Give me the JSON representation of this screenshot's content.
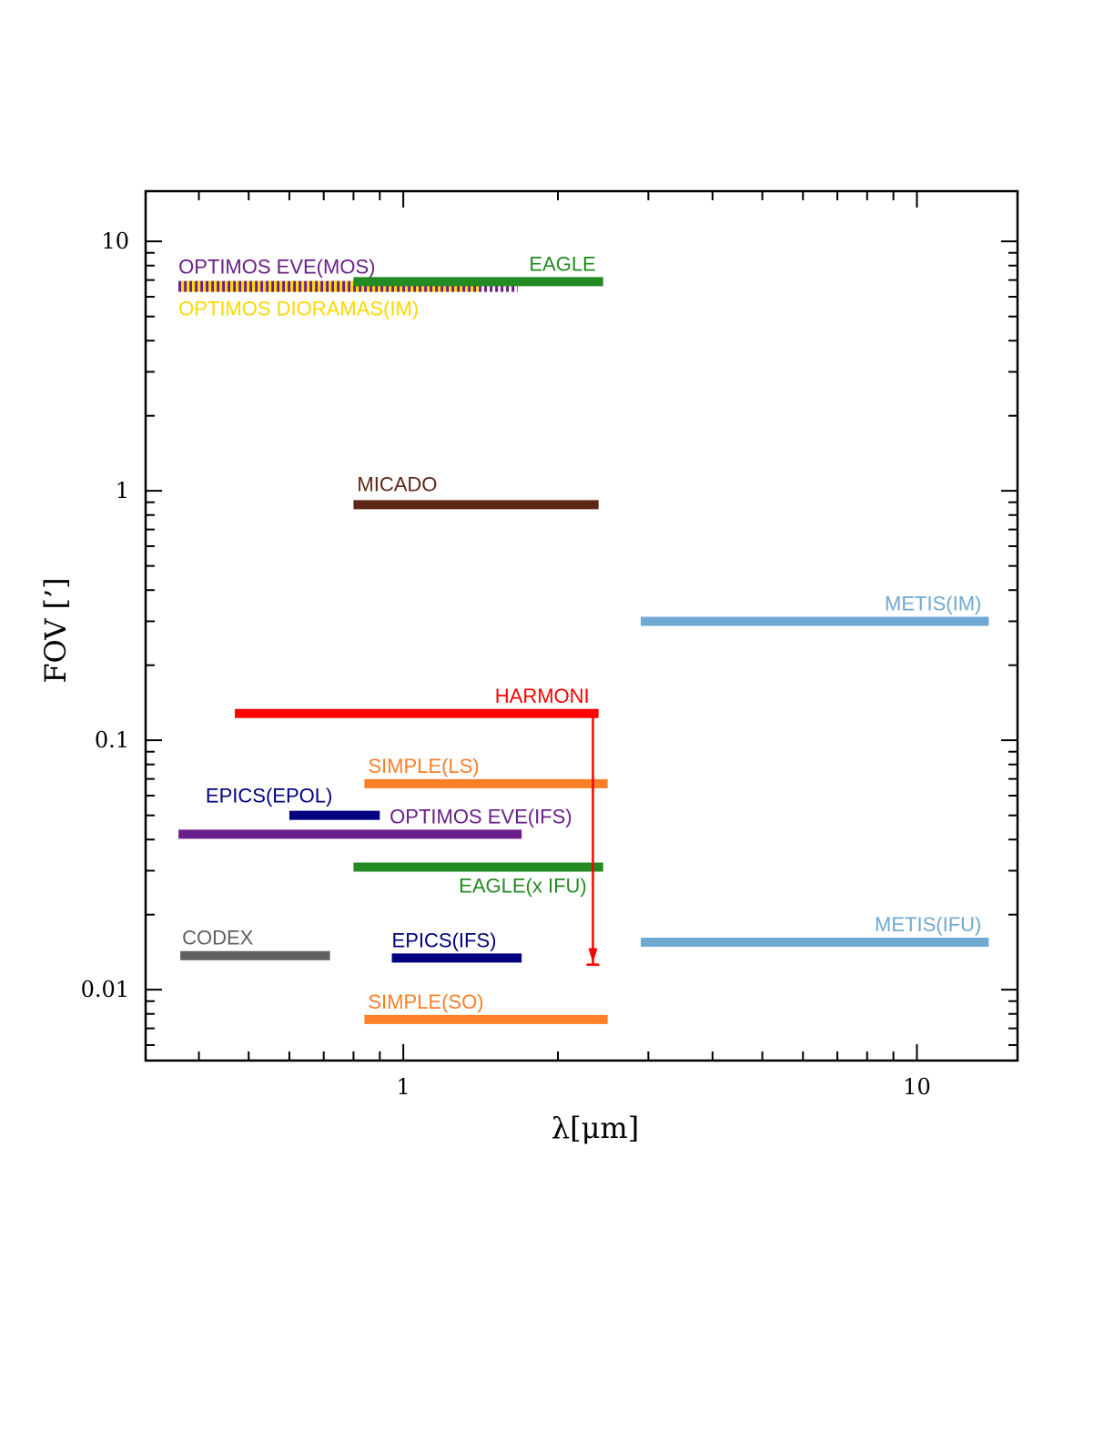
{
  "chart_data": {
    "type": "range-bar",
    "title": "",
    "xlabel": "λ[μm]",
    "ylabel": "FOV [’]",
    "xscale": "log",
    "yscale": "log",
    "xlim": [
      0.315,
      15.7
    ],
    "ylim": [
      0.0052,
      15.9
    ],
    "xticks": [
      1,
      10
    ],
    "xtick_labels": [
      "1",
      "10"
    ],
    "yticks": [
      0.01,
      0.1,
      1,
      10
    ],
    "ytick_labels": [
      "0.01",
      "0.1",
      "1",
      "10"
    ],
    "grid": false,
    "legend": "none (inline labels)",
    "series": [
      {
        "name": "OPTIMOS EVE(MOS)",
        "label": "OPTIMOS EVE(MOS)",
        "x_start": 0.365,
        "x_end": 1.67,
        "fov": 6.6,
        "color": "#6a1f8a",
        "style": "dashed"
      },
      {
        "name": "OPTIMOS DIORAMAS(IM)",
        "label": "OPTIMOS DIORAMAS(IM)",
        "x_start": 0.365,
        "x_end": 1.4,
        "fov": 6.6,
        "color": "#ffd700",
        "style": "dashed"
      },
      {
        "name": "EAGLE",
        "label": "EAGLE",
        "x_start": 0.8,
        "x_end": 2.45,
        "fov": 6.9,
        "color": "#228b22",
        "style": "solid"
      },
      {
        "name": "MICADO",
        "label": "MICADO",
        "x_start": 0.8,
        "x_end": 2.4,
        "fov": 0.88,
        "color": "#5c2714",
        "style": "solid"
      },
      {
        "name": "METIS(IM)",
        "label": "METIS(IM)",
        "x_start": 2.9,
        "x_end": 13.8,
        "fov": 0.3,
        "color": "#6fa8d0",
        "style": "solid"
      },
      {
        "name": "HARMONI",
        "label": "HARMONI",
        "x_start": 0.47,
        "x_end": 2.4,
        "fov": 0.128,
        "color": "#ff0000",
        "style": "solid"
      },
      {
        "name": "SIMPLE(LS)",
        "label": "SIMPLE(LS)",
        "x_start": 0.84,
        "x_end": 2.5,
        "fov": 0.067,
        "color": "#ff7f27",
        "style": "solid"
      },
      {
        "name": "EPICS(EPOL)",
        "label": "EPICS(EPOL)",
        "x_start": 0.6,
        "x_end": 0.9,
        "fov": 0.05,
        "color": "#000080",
        "style": "solid"
      },
      {
        "name": "OPTIMOS EVE(IFS)",
        "label": "OPTIMOS EVE(IFS)",
        "x_start": 0.365,
        "x_end": 1.7,
        "fov": 0.042,
        "color": "#6a1f8a",
        "style": "solid"
      },
      {
        "name": "EAGLE(x IFU)",
        "label": "EAGLE(x IFU)",
        "x_start": 0.8,
        "x_end": 2.45,
        "fov": 0.031,
        "color": "#228b22",
        "style": "solid"
      },
      {
        "name": "METIS(IFU)",
        "label": "METIS(IFU)",
        "x_start": 2.9,
        "x_end": 13.8,
        "fov": 0.0155,
        "color": "#6fa8d0",
        "style": "solid"
      },
      {
        "name": "CODEX",
        "label": "CODEX",
        "x_start": 0.368,
        "x_end": 0.72,
        "fov": 0.0137,
        "color": "#606060",
        "style": "solid"
      },
      {
        "name": "EPICS(IFS)",
        "label": "EPICS(IFS)",
        "x_start": 0.95,
        "x_end": 1.7,
        "fov": 0.0134,
        "color": "#000080",
        "style": "solid"
      },
      {
        "name": "SIMPLE(SO)",
        "label": "SIMPLE(SO)",
        "x_start": 0.84,
        "x_end": 2.5,
        "fov": 0.0076,
        "color": "#ff7f27",
        "style": "solid"
      }
    ],
    "annotations": [
      {
        "type": "arrow",
        "x": 2.34,
        "from_fov": 0.128,
        "to_fov": 0.0126,
        "color": "#ff0000",
        "note": "HARMONI downward arrow"
      }
    ]
  }
}
